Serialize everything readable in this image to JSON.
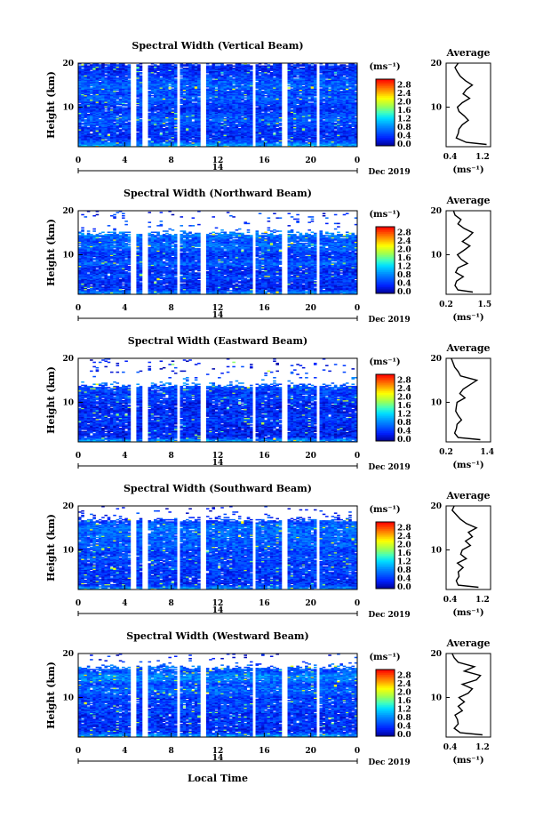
{
  "chart_data": {
    "type": "heatmap",
    "date_label": "Dec 2019",
    "date_day": "14",
    "xlabel_bottom": "Local Time",
    "x_ticks": [
      "0",
      "4",
      "8",
      "12",
      "16",
      "20",
      "0"
    ],
    "x_range": [
      0,
      24
    ],
    "ylabel": "Height (km)",
    "y_ticks": [
      "20",
      "10"
    ],
    "y_range": [
      1,
      20
    ],
    "colorbar_unit": "(ms⁻¹)",
    "colorbar_ticks": [
      "2.8",
      "2.4",
      "2.0",
      "1.6",
      "1.2",
      "0.8",
      "0.4",
      "0.0"
    ],
    "colorbar_range": [
      0.0,
      3.0
    ],
    "data_gaps_hours": [
      [
        4.5,
        5.0
      ],
      [
        5.6,
        6.0
      ],
      [
        8.4,
        8.8
      ],
      [
        10.5,
        10.9
      ],
      [
        14.9,
        15.3
      ],
      [
        17.6,
        18.0
      ],
      [
        20.4,
        20.8
      ]
    ],
    "profile_title": "Average",
    "profile_xunit": "(ms⁻¹)",
    "panels": [
      {
        "title": "Spectral Width (Vertical Beam)",
        "echo_top_km": 20,
        "profile_x_ticks": [
          "0.4",
          "1.2"
        ],
        "profile_xlim": [
          0.3,
          1.4
        ],
        "profile": {
          "height_km": [
            1.5,
            2,
            3,
            4,
            5,
            6,
            7,
            8,
            9,
            10,
            11,
            12,
            13,
            14,
            15,
            16,
            17,
            18,
            19,
            20
          ],
          "value": [
            1.3,
            0.8,
            0.55,
            0.6,
            0.62,
            0.7,
            0.85,
            0.75,
            0.62,
            0.58,
            0.7,
            0.88,
            0.72,
            0.8,
            0.95,
            0.78,
            0.65,
            0.58,
            0.52,
            0.6
          ]
        }
      },
      {
        "title": "Spectral Width (Northward Beam)",
        "echo_top_km": 15,
        "profile_x_ticks": [
          "0.2",
          "1.5"
        ],
        "profile_xlim": [
          0.2,
          1.7
        ],
        "profile": {
          "height_km": [
            1.5,
            2,
            3,
            4,
            5,
            6,
            7,
            8,
            9,
            10,
            11,
            12,
            13,
            14,
            15,
            16,
            17,
            18,
            19,
            20
          ],
          "value": [
            1.1,
            0.6,
            0.5,
            0.55,
            0.78,
            0.52,
            0.6,
            0.92,
            0.7,
            0.58,
            0.8,
            1.0,
            0.75,
            0.95,
            1.1,
            0.8,
            0.6,
            0.7,
            0.5,
            0.45
          ]
        }
      },
      {
        "title": "Spectral Width (Eastward Beam)",
        "echo_top_km": 14,
        "profile_x_ticks": [
          "0.2",
          "1.4"
        ],
        "profile_xlim": [
          0.2,
          1.5
        ],
        "profile": {
          "height_km": [
            1.5,
            2,
            3,
            4,
            5,
            6,
            7,
            8,
            9,
            10,
            11,
            12,
            13,
            14,
            15,
            16,
            17,
            18,
            19,
            20
          ],
          "value": [
            1.2,
            0.55,
            0.45,
            0.5,
            0.52,
            0.65,
            0.55,
            0.48,
            0.5,
            0.52,
            0.75,
            0.6,
            0.7,
            0.9,
            1.1,
            0.62,
            0.55,
            0.45,
            0.4,
            0.35
          ]
        }
      },
      {
        "title": "Spectral Width (Southward Beam)",
        "echo_top_km": 17,
        "profile_x_ticks": [
          "0.4",
          "1.2"
        ],
        "profile_xlim": [
          0.3,
          1.4
        ],
        "profile": {
          "height_km": [
            1.5,
            2,
            3,
            4,
            5,
            6,
            7,
            8,
            9,
            10,
            11,
            12,
            13,
            14,
            15,
            16,
            17,
            18,
            19,
            20
          ],
          "value": [
            1.1,
            0.6,
            0.55,
            0.62,
            0.6,
            0.72,
            0.58,
            0.8,
            0.66,
            0.7,
            0.9,
            0.78,
            0.95,
            0.85,
            1.05,
            0.8,
            0.65,
            0.55,
            0.45,
            0.5
          ]
        }
      },
      {
        "title": "Spectral Width (Westward Beam)",
        "echo_top_km": 17,
        "profile_x_ticks": [
          "0.4",
          "1.2"
        ],
        "profile_xlim": [
          0.3,
          1.4
        ],
        "profile": {
          "height_km": [
            1.5,
            2,
            3,
            4,
            5,
            6,
            7,
            8,
            9,
            10,
            11,
            12,
            13,
            14,
            15,
            16,
            17,
            18,
            19,
            20
          ],
          "value": [
            1.2,
            0.65,
            0.5,
            0.6,
            0.58,
            0.52,
            0.7,
            0.6,
            0.75,
            0.62,
            0.85,
            0.95,
            0.7,
            1.05,
            1.15,
            0.75,
            1.0,
            0.6,
            0.5,
            0.45
          ]
        }
      }
    ]
  }
}
